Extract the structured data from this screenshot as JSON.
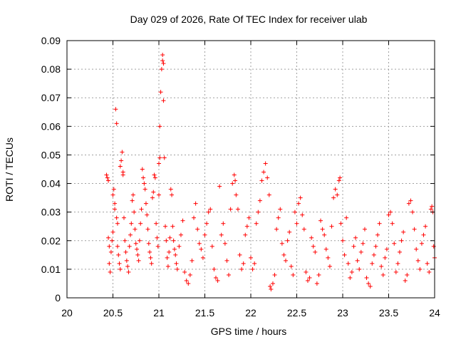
{
  "chart_data": {
    "type": "scatter",
    "title": "Day 029 of 2026, Rate Of TEC Index for receiver ulab",
    "xlabel": "GPS time / hours",
    "ylabel": "ROTI / TECUs",
    "xlim": [
      20,
      24
    ],
    "ylim": [
      0,
      0.09
    ],
    "x_ticks": [
      20,
      20.5,
      21,
      21.5,
      22,
      22.5,
      23,
      23.5,
      24
    ],
    "x_tick_labels": [
      "20",
      "20.5",
      "21",
      "21.5",
      "22",
      "22.5",
      "23",
      "23.5",
      "24"
    ],
    "y_ticks": [
      0,
      0.01,
      0.02,
      0.03,
      0.04,
      0.05,
      0.06,
      0.07,
      0.08,
      0.09
    ],
    "y_tick_labels": [
      "0",
      "0.01",
      "0.02",
      "0.03",
      "0.04",
      "0.05",
      "0.06",
      "0.07",
      "0.08",
      "0.09"
    ],
    "grid": true,
    "marker": "+",
    "color": "#ff0000",
    "series": [
      {
        "name": "ROTI",
        "points": [
          [
            20.43,
            0.043
          ],
          [
            20.44,
            0.042
          ],
          [
            20.45,
            0.041
          ],
          [
            20.45,
            0.021
          ],
          [
            20.46,
            0.018
          ],
          [
            20.46,
            0.012
          ],
          [
            20.47,
            0.009
          ],
          [
            20.48,
            0.016
          ],
          [
            20.49,
            0.02
          ],
          [
            20.5,
            0.023
          ],
          [
            20.5,
            0.036
          ],
          [
            20.51,
            0.038
          ],
          [
            20.52,
            0.033
          ],
          [
            20.52,
            0.031
          ],
          [
            20.53,
            0.066
          ],
          [
            20.54,
            0.061
          ],
          [
            20.54,
            0.028
          ],
          [
            20.55,
            0.026
          ],
          [
            20.55,
            0.018
          ],
          [
            20.56,
            0.015
          ],
          [
            20.57,
            0.012
          ],
          [
            20.58,
            0.01
          ],
          [
            20.58,
            0.046
          ],
          [
            20.59,
            0.048
          ],
          [
            20.6,
            0.051
          ],
          [
            20.61,
            0.044
          ],
          [
            20.61,
            0.043
          ],
          [
            20.62,
            0.028
          ],
          [
            20.63,
            0.02
          ],
          [
            20.64,
            0.016
          ],
          [
            20.65,
            0.013
          ],
          [
            20.66,
            0.011
          ],
          [
            20.67,
            0.009
          ],
          [
            20.68,
            0.018
          ],
          [
            20.69,
            0.022
          ],
          [
            20.7,
            0.026
          ],
          [
            20.71,
            0.034
          ],
          [
            20.72,
            0.036
          ],
          [
            20.73,
            0.03
          ],
          [
            20.74,
            0.024
          ],
          [
            20.75,
            0.019
          ],
          [
            20.76,
            0.017
          ],
          [
            20.77,
            0.015
          ],
          [
            20.78,
            0.013
          ],
          [
            20.79,
            0.02
          ],
          [
            20.8,
            0.026
          ],
          [
            20.81,
            0.031
          ],
          [
            20.82,
            0.045
          ],
          [
            20.83,
            0.042
          ],
          [
            20.84,
            0.04
          ],
          [
            20.85,
            0.038
          ],
          [
            20.86,
            0.033
          ],
          [
            20.87,
            0.029
          ],
          [
            20.88,
            0.024
          ],
          [
            20.89,
            0.019
          ],
          [
            20.9,
            0.016
          ],
          [
            20.91,
            0.014
          ],
          [
            20.92,
            0.012
          ],
          [
            20.93,
            0.035
          ],
          [
            20.94,
            0.037
          ],
          [
            20.95,
            0.043
          ],
          [
            20.96,
            0.042
          ],
          [
            20.97,
            0.026
          ],
          [
            20.98,
            0.021
          ],
          [
            20.99,
            0.018
          ],
          [
            21.0,
            0.036
          ],
          [
            21.0,
            0.047
          ],
          [
            21.01,
            0.049
          ],
          [
            21.01,
            0.06
          ],
          [
            21.02,
            0.072
          ],
          [
            21.03,
            0.08
          ],
          [
            21.04,
            0.083
          ],
          [
            21.04,
            0.085
          ],
          [
            21.05,
            0.082
          ],
          [
            21.05,
            0.069
          ],
          [
            21.06,
            0.049
          ],
          [
            21.07,
            0.025
          ],
          [
            21.08,
            0.02
          ],
          [
            21.09,
            0.014
          ],
          [
            21.1,
            0.011
          ],
          [
            21.11,
            0.016
          ],
          [
            21.12,
            0.021
          ],
          [
            21.13,
            0.038
          ],
          [
            21.14,
            0.036
          ],
          [
            21.15,
            0.025
          ],
          [
            21.16,
            0.02
          ],
          [
            21.17,
            0.017
          ],
          [
            21.18,
            0.015
          ],
          [
            21.19,
            0.012
          ],
          [
            21.2,
            0.01
          ],
          [
            21.22,
            0.018
          ],
          [
            21.24,
            0.022
          ],
          [
            21.26,
            0.027
          ],
          [
            21.28,
            0.009
          ],
          [
            21.3,
            0.006
          ],
          [
            21.32,
            0.005
          ],
          [
            21.34,
            0.008
          ],
          [
            21.36,
            0.013
          ],
          [
            21.38,
            0.028
          ],
          [
            21.4,
            0.033
          ],
          [
            21.42,
            0.024
          ],
          [
            21.44,
            0.019
          ],
          [
            21.46,
            0.017
          ],
          [
            21.48,
            0.014
          ],
          [
            21.5,
            0.022
          ],
          [
            21.52,
            0.026
          ],
          [
            21.54,
            0.03
          ],
          [
            21.56,
            0.031
          ],
          [
            21.58,
            0.018
          ],
          [
            21.6,
            0.01
          ],
          [
            21.62,
            0.007
          ],
          [
            21.64,
            0.006
          ],
          [
            21.66,
            0.039
          ],
          [
            21.68,
            0.022
          ],
          [
            21.7,
            0.026
          ],
          [
            21.72,
            0.019
          ],
          [
            21.74,
            0.013
          ],
          [
            21.76,
            0.008
          ],
          [
            21.78,
            0.031
          ],
          [
            21.8,
            0.04
          ],
          [
            21.82,
            0.043
          ],
          [
            21.83,
            0.041
          ],
          [
            21.84,
            0.036
          ],
          [
            21.86,
            0.031
          ],
          [
            21.88,
            0.015
          ],
          [
            21.9,
            0.01
          ],
          [
            21.92,
            0.012
          ],
          [
            21.94,
            0.022
          ],
          [
            21.96,
            0.025
          ],
          [
            21.98,
            0.028
          ],
          [
            22.0,
            0.014
          ],
          [
            22.02,
            0.01
          ],
          [
            22.04,
            0.012
          ],
          [
            22.06,
            0.026
          ],
          [
            22.08,
            0.03
          ],
          [
            22.1,
            0.034
          ],
          [
            22.12,
            0.041
          ],
          [
            22.14,
            0.044
          ],
          [
            22.16,
            0.047
          ],
          [
            22.18,
            0.042
          ],
          [
            22.2,
            0.036
          ],
          [
            22.21,
            0.004
          ],
          [
            22.22,
            0.003
          ],
          [
            22.24,
            0.005
          ],
          [
            22.26,
            0.008
          ],
          [
            22.28,
            0.024
          ],
          [
            22.3,
            0.028
          ],
          [
            22.32,
            0.031
          ],
          [
            22.34,
            0.019
          ],
          [
            22.36,
            0.015
          ],
          [
            22.38,
            0.013
          ],
          [
            22.4,
            0.02
          ],
          [
            22.42,
            0.023
          ],
          [
            22.44,
            0.011
          ],
          [
            22.46,
            0.008
          ],
          [
            22.48,
            0.03
          ],
          [
            22.5,
            0.026
          ],
          [
            22.52,
            0.033
          ],
          [
            22.54,
            0.035
          ],
          [
            22.56,
            0.029
          ],
          [
            22.58,
            0.024
          ],
          [
            22.6,
            0.009
          ],
          [
            22.62,
            0.006
          ],
          [
            22.64,
            0.007
          ],
          [
            22.66,
            0.021
          ],
          [
            22.68,
            0.018
          ],
          [
            22.7,
            0.016
          ],
          [
            22.72,
            0.005
          ],
          [
            22.74,
            0.008
          ],
          [
            22.76,
            0.027
          ],
          [
            22.78,
            0.024
          ],
          [
            22.8,
            0.022
          ],
          [
            22.82,
            0.017
          ],
          [
            22.84,
            0.014
          ],
          [
            22.86,
            0.011
          ],
          [
            22.88,
            0.025
          ],
          [
            22.9,
            0.035
          ],
          [
            22.92,
            0.038
          ],
          [
            22.94,
            0.036
          ],
          [
            22.96,
            0.041
          ],
          [
            22.97,
            0.042
          ],
          [
            22.98,
            0.026
          ],
          [
            23.0,
            0.02
          ],
          [
            23.02,
            0.015
          ],
          [
            23.04,
            0.028
          ],
          [
            23.06,
            0.012
          ],
          [
            23.08,
            0.007
          ],
          [
            23.1,
            0.009
          ],
          [
            23.12,
            0.018
          ],
          [
            23.14,
            0.021
          ],
          [
            23.16,
            0.013
          ],
          [
            23.18,
            0.01
          ],
          [
            23.2,
            0.016
          ],
          [
            23.22,
            0.019
          ],
          [
            23.24,
            0.024
          ],
          [
            23.26,
            0.007
          ],
          [
            23.28,
            0.005
          ],
          [
            23.3,
            0.004
          ],
          [
            23.32,
            0.012
          ],
          [
            23.34,
            0.015
          ],
          [
            23.36,
            0.018
          ],
          [
            23.38,
            0.022
          ],
          [
            23.4,
            0.026
          ],
          [
            23.42,
            0.011
          ],
          [
            23.44,
            0.008
          ],
          [
            23.46,
            0.014
          ],
          [
            23.48,
            0.017
          ],
          [
            23.5,
            0.029
          ],
          [
            23.52,
            0.03
          ],
          [
            23.54,
            0.026
          ],
          [
            23.56,
            0.019
          ],
          [
            23.58,
            0.009
          ],
          [
            23.6,
            0.012
          ],
          [
            23.62,
            0.016
          ],
          [
            23.64,
            0.02
          ],
          [
            23.66,
            0.023
          ],
          [
            23.68,
            0.006
          ],
          [
            23.7,
            0.008
          ],
          [
            23.72,
            0.033
          ],
          [
            23.74,
            0.034
          ],
          [
            23.76,
            0.03
          ],
          [
            23.78,
            0.024
          ],
          [
            23.8,
            0.017
          ],
          [
            23.82,
            0.013
          ],
          [
            23.84,
            0.01
          ],
          [
            23.86,
            0.019
          ],
          [
            23.88,
            0.022
          ],
          [
            23.9,
            0.025
          ],
          [
            23.92,
            0.012
          ],
          [
            23.94,
            0.009
          ],
          [
            23.96,
            0.031
          ],
          [
            23.97,
            0.032
          ],
          [
            23.98,
            0.03
          ],
          [
            23.99,
            0.018
          ],
          [
            24.0,
            0.014
          ]
        ]
      }
    ]
  }
}
